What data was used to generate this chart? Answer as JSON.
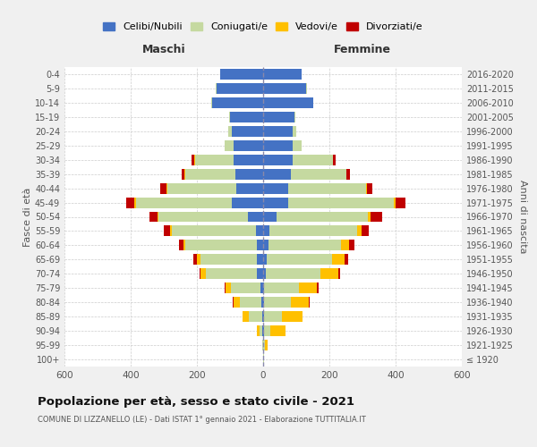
{
  "age_groups": [
    "100+",
    "95-99",
    "90-94",
    "85-89",
    "80-84",
    "75-79",
    "70-74",
    "65-69",
    "60-64",
    "55-59",
    "50-54",
    "45-49",
    "40-44",
    "35-39",
    "30-34",
    "25-29",
    "20-24",
    "15-19",
    "10-14",
    "5-9",
    "0-4"
  ],
  "birth_years": [
    "≤ 1920",
    "1921-1925",
    "1926-1930",
    "1931-1935",
    "1936-1940",
    "1941-1945",
    "1946-1950",
    "1951-1955",
    "1956-1960",
    "1961-1965",
    "1966-1970",
    "1971-1975",
    "1976-1980",
    "1981-1985",
    "1986-1990",
    "1991-1995",
    "1996-2000",
    "2001-2005",
    "2006-2010",
    "2011-2015",
    "2016-2020"
  ],
  "males": {
    "celibe": [
      0,
      0,
      2,
      3,
      5,
      8,
      18,
      20,
      20,
      22,
      45,
      95,
      80,
      85,
      90,
      90,
      95,
      100,
      155,
      140,
      130
    ],
    "coniugato": [
      0,
      2,
      8,
      40,
      65,
      90,
      155,
      170,
      215,
      255,
      270,
      290,
      210,
      150,
      115,
      25,
      10,
      2,
      2,
      2,
      0
    ],
    "vedovo": [
      0,
      2,
      8,
      20,
      20,
      15,
      15,
      10,
      5,
      5,
      5,
      3,
      2,
      2,
      2,
      0,
      0,
      0,
      0,
      0,
      0
    ],
    "divorziato": [
      0,
      0,
      0,
      0,
      2,
      3,
      5,
      10,
      15,
      18,
      22,
      25,
      18,
      10,
      8,
      0,
      0,
      0,
      0,
      0,
      0
    ]
  },
  "females": {
    "nubile": [
      0,
      0,
      2,
      3,
      3,
      3,
      8,
      12,
      15,
      18,
      40,
      75,
      75,
      85,
      90,
      90,
      90,
      95,
      150,
      130,
      115
    ],
    "coniugata": [
      2,
      5,
      20,
      55,
      80,
      105,
      165,
      195,
      220,
      265,
      275,
      320,
      235,
      165,
      120,
      25,
      10,
      3,
      2,
      2,
      0
    ],
    "vedova": [
      2,
      8,
      45,
      60,
      55,
      55,
      55,
      40,
      25,
      15,
      10,
      5,
      3,
      2,
      2,
      0,
      0,
      0,
      0,
      0,
      0
    ],
    "divorziata": [
      0,
      0,
      0,
      2,
      3,
      5,
      5,
      10,
      15,
      22,
      35,
      30,
      18,
      10,
      8,
      0,
      0,
      0,
      0,
      0,
      0
    ]
  },
  "colors": {
    "celibe": "#4472c4",
    "coniugato": "#c5d9a0",
    "vedovo": "#ffc000",
    "divorziato": "#c00000"
  },
  "title": "Popolazione per età, sesso e stato civile - 2021",
  "subtitle": "COMUNE DI LIZZANELLO (LE) - Dati ISTAT 1° gennaio 2021 - Elaborazione TUTTITALIA.IT",
  "xlabel_left": "Maschi",
  "xlabel_right": "Femmine",
  "ylabel_left": "Fasce di età",
  "ylabel_right": "Anni di nascita",
  "xlim": 600,
  "bg_color": "#f0f0f0",
  "plot_bg": "#ffffff",
  "legend_labels": [
    "Celibi/Nubili",
    "Coniugati/e",
    "Vedovi/e",
    "Divorziati/e"
  ]
}
